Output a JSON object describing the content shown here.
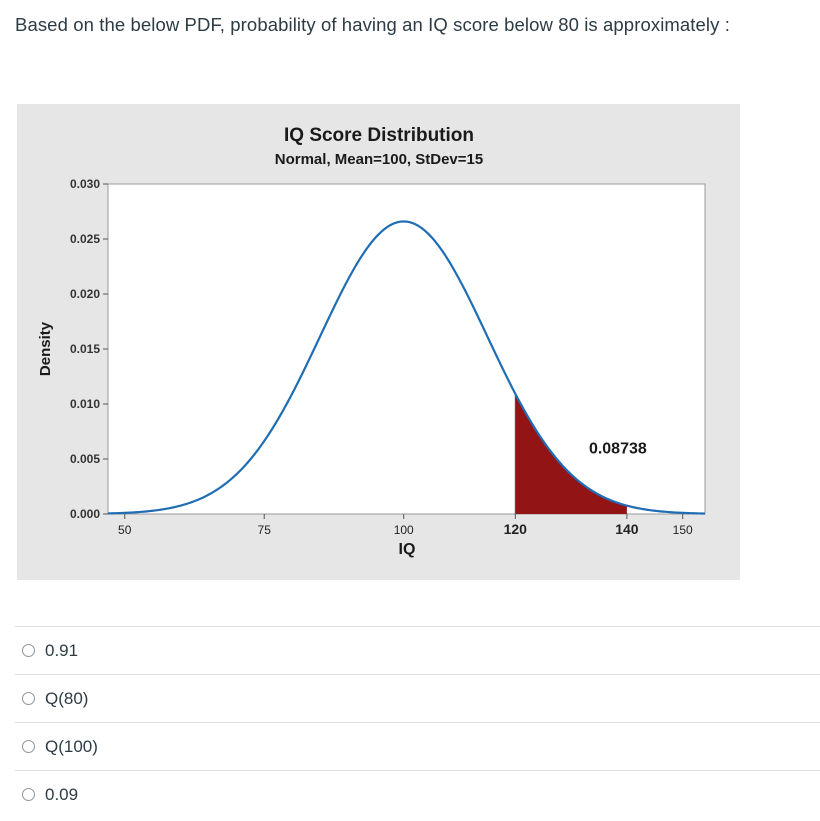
{
  "question": {
    "text": "Based on the below PDF,  probability of having an IQ score below 80 is approximately :"
  },
  "chart_data": {
    "type": "area",
    "title": "IQ Score Distribution",
    "subtitle": "Normal, Mean=100, StDev=15",
    "xlabel": "IQ",
    "ylabel": "Density",
    "mean": 100,
    "stdev": 15,
    "xlim": [
      47,
      154
    ],
    "ylim": [
      0,
      0.03
    ],
    "xticks": [
      {
        "value": 50,
        "label": "50",
        "bold": false
      },
      {
        "value": 75,
        "label": "75",
        "bold": false
      },
      {
        "value": 100,
        "label": "100",
        "bold": false
      },
      {
        "value": 120,
        "label": "120",
        "bold": true
      },
      {
        "value": 140,
        "label": "140",
        "bold": true
      },
      {
        "value": 150,
        "label": "150",
        "bold": false
      }
    ],
    "yticks": [
      "0.000",
      "0.005",
      "0.010",
      "0.015",
      "0.020",
      "0.025",
      "0.030"
    ],
    "shaded_region": {
      "from": 120,
      "to": 140,
      "area_label": "0.08738"
    },
    "colors": {
      "curve": "#1f6db4",
      "shade": "#931414",
      "background": "#e6e6e6",
      "plot_bg": "#ffffff"
    },
    "grid": false
  },
  "answers": [
    {
      "label": "0.91"
    },
    {
      "label": "Q(80)"
    },
    {
      "label": "Q(100)"
    },
    {
      "label": "0.09"
    }
  ]
}
